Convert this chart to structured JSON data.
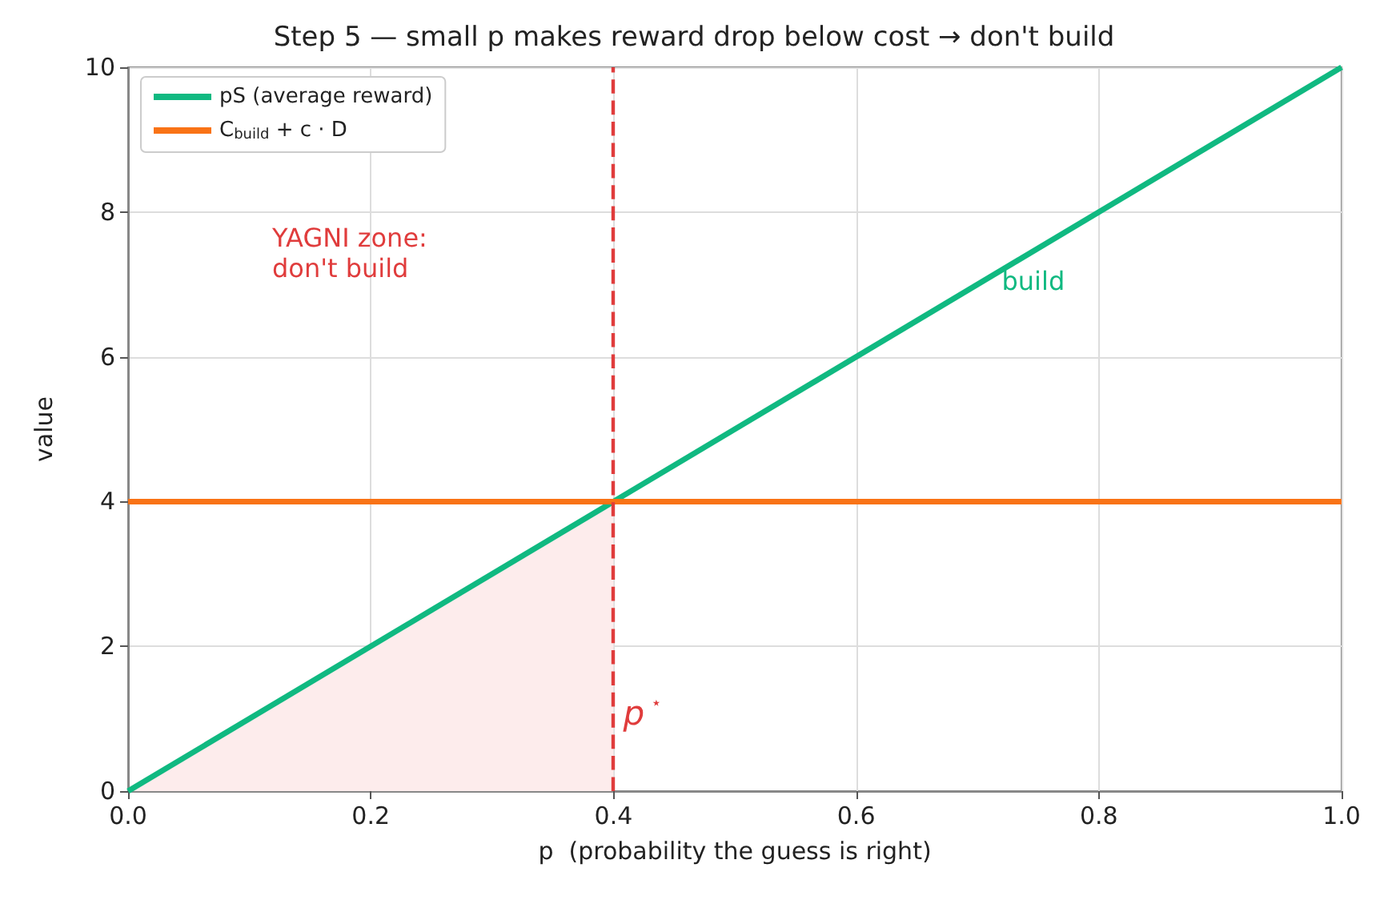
{
  "chart_data": {
    "type": "line",
    "title": "Step 5 — small p makes reward drop below cost → don't build",
    "xlabel": "p  (probability the guess is right)",
    "ylabel": "value",
    "series": [
      {
        "name": "pS (average reward)",
        "color": "#10b981",
        "x": [
          0,
          1
        ],
        "values": [
          0,
          10
        ]
      },
      {
        "name": "C$_{build}$ + c · D",
        "color": "#f97316",
        "x": [
          0,
          1
        ],
        "values": [
          4,
          4
        ]
      },
      {
        "type": "area",
        "color": "#fdecec",
        "x": [
          0,
          0.4
        ],
        "values": [
          0,
          4
        ]
      }
    ],
    "xlim": [
      0,
      1
    ],
    "xticks": [
      {
        "value": 0,
        "label": "0.0"
      },
      {
        "value": 0.2,
        "label": "0.2"
      },
      {
        "value": 0.4,
        "label": "0.4"
      },
      {
        "value": 0.6,
        "label": "0.6"
      },
      {
        "value": 0.8,
        "label": "0.8"
      },
      {
        "value": 1,
        "label": "1.0"
      }
    ],
    "ylim": [
      0,
      10
    ],
    "yticks": [
      0,
      2,
      4,
      6,
      8,
      10
    ],
    "ref_lines": [
      {
        "axis": "x",
        "value": 0.4,
        "label": "p$^{⋆}$",
        "color": "#e03c3c",
        "line_style": "dashed"
      }
    ],
    "annotations": [
      "YAGNI zone:\ndon't build",
      {
        "text": "build",
        "x": 0.72,
        "y": 7.05
      }
    ],
    "grid": true,
    "legend": "top left",
    "marker": "none",
    "line_style": "solid"
  }
}
